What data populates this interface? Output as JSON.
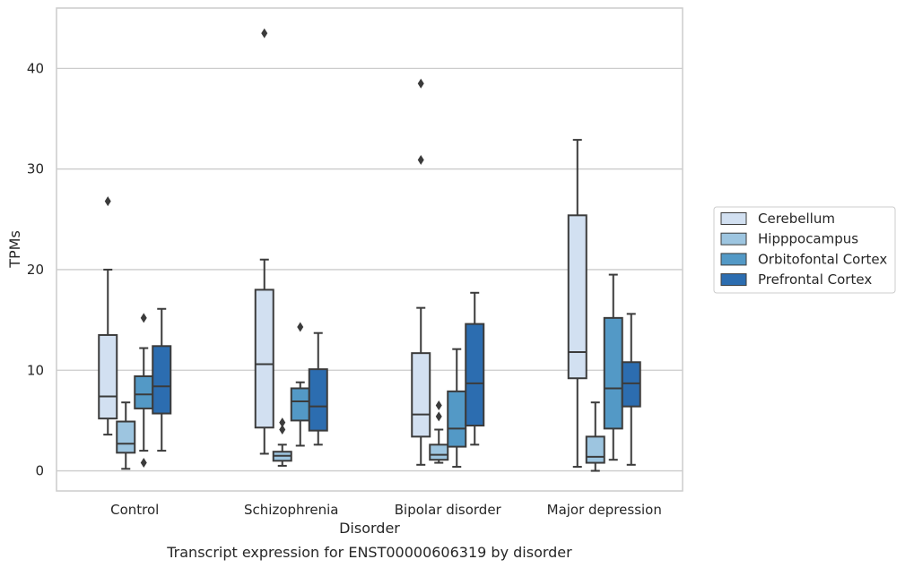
{
  "chart_data": {
    "type": "box",
    "xlabel": "Disorder",
    "ylabel": "TPMs",
    "caption": "Transcript expression for ENST00000606319 by disorder",
    "categories": [
      "Control",
      "Schizophrenia",
      "Bipolar disorder",
      "Major depression"
    ],
    "ylim": [
      -2,
      46
    ],
    "yticks": [
      0,
      10,
      20,
      30,
      40
    ],
    "grid": true,
    "legend_position": "right",
    "series": [
      {
        "name": "Cerebellum",
        "color": "#d2e0f1",
        "boxes": [
          {
            "min": 3.6,
            "q1": 5.2,
            "median": 7.4,
            "q3": 13.5,
            "max": 20.0,
            "outliers": [
              26.8
            ]
          },
          {
            "min": 1.7,
            "q1": 4.3,
            "median": 10.6,
            "q3": 18.0,
            "max": 21.0,
            "outliers": [
              43.5
            ]
          },
          {
            "min": 0.6,
            "q1": 3.4,
            "median": 5.6,
            "q3": 11.7,
            "max": 16.2,
            "outliers": [
              30.9,
              38.5
            ]
          },
          {
            "min": 0.4,
            "q1": 9.2,
            "median": 11.8,
            "q3": 25.4,
            "max": 32.9,
            "outliers": []
          }
        ]
      },
      {
        "name": "Hipppocampus",
        "color": "#9dc5e0",
        "boxes": [
          {
            "min": 0.2,
            "q1": 1.8,
            "median": 2.7,
            "q3": 4.9,
            "max": 6.8,
            "outliers": []
          },
          {
            "min": 0.5,
            "q1": 1.0,
            "median": 1.5,
            "q3": 1.9,
            "max": 2.6,
            "outliers": [
              4.1,
              4.8
            ]
          },
          {
            "min": 0.8,
            "q1": 1.1,
            "median": 1.6,
            "q3": 2.6,
            "max": 4.1,
            "outliers": [
              5.4,
              6.5
            ]
          },
          {
            "min": 0.0,
            "q1": 0.8,
            "median": 1.4,
            "q3": 3.4,
            "max": 6.8,
            "outliers": []
          }
        ]
      },
      {
        "name": "Orbitofontal Cortex",
        "color": "#5399c6",
        "boxes": [
          {
            "min": 2.0,
            "q1": 6.2,
            "median": 7.6,
            "q3": 9.4,
            "max": 12.2,
            "outliers": [
              0.8,
              15.2
            ]
          },
          {
            "min": 2.5,
            "q1": 5.0,
            "median": 6.9,
            "q3": 8.2,
            "max": 8.8,
            "outliers": [
              14.3
            ]
          },
          {
            "min": 0.4,
            "q1": 2.4,
            "median": 4.2,
            "q3": 7.9,
            "max": 12.1,
            "outliers": []
          },
          {
            "min": 1.1,
            "q1": 4.2,
            "median": 8.2,
            "q3": 15.2,
            "max": 19.5,
            "outliers": []
          }
        ]
      },
      {
        "name": "Prefrontal Cortex",
        "color": "#2c6db0",
        "boxes": [
          {
            "min": 2.0,
            "q1": 5.7,
            "median": 8.4,
            "q3": 12.4,
            "max": 16.1,
            "outliers": []
          },
          {
            "min": 2.6,
            "q1": 4.0,
            "median": 6.4,
            "q3": 10.1,
            "max": 13.7,
            "outliers": []
          },
          {
            "min": 2.6,
            "q1": 4.5,
            "median": 8.7,
            "q3": 14.6,
            "max": 17.7,
            "outliers": []
          },
          {
            "min": 0.6,
            "q1": 6.4,
            "median": 8.7,
            "q3": 10.8,
            "max": 15.6,
            "outliers": []
          }
        ]
      }
    ]
  }
}
